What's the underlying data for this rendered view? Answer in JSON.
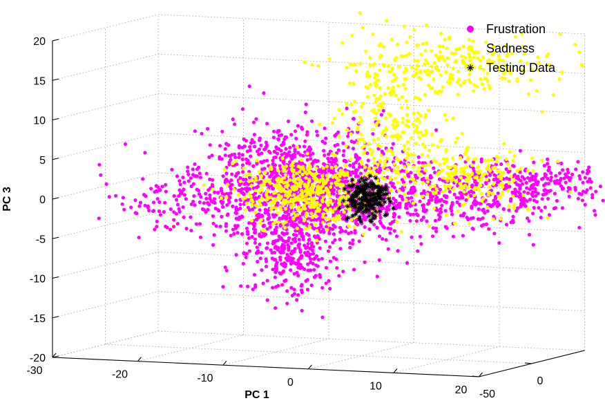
{
  "chart_data": {
    "type": "scatter",
    "projection": "3d",
    "title": "",
    "xlabel": "PC 1",
    "ylabel": "",
    "zlabel": "PC 3",
    "xlim": [
      -30,
      20
    ],
    "ylim": [
      -50,
      50
    ],
    "zlim": [
      -20,
      20
    ],
    "x_ticks": [
      "-30",
      "-20",
      "-10",
      "0",
      "10",
      "20"
    ],
    "y_ticks": [
      "-50",
      "0"
    ],
    "z_ticks": [
      "-20",
      "-15",
      "-10",
      "-5",
      "0",
      "5",
      "10",
      "15",
      "20"
    ],
    "grid": true,
    "legend_position": "top-right",
    "series": [
      {
        "name": "Frustration",
        "marker": "dot",
        "color": "#ff00ff",
        "clusters": [
          {
            "pc1": -6,
            "pc2": -5,
            "pc3": 1,
            "spread": [
              6,
              6,
              3.5
            ],
            "count": 1300
          },
          {
            "pc1": -8,
            "pc2": -5,
            "pc3": -7,
            "spread": [
              3,
              4,
              3
            ],
            "count": 300
          },
          {
            "pc1": 12,
            "pc2": -10,
            "pc3": 1,
            "spread": [
              6,
              6,
              2
            ],
            "count": 350
          },
          {
            "pc1": 20,
            "pc2": 0,
            "pc3": 3,
            "spread": [
              5,
              8,
              1.5
            ],
            "count": 220
          },
          {
            "pc1": -20,
            "pc2": -8,
            "pc3": -1,
            "spread": [
              4,
              4,
              2
            ],
            "count": 120
          }
        ]
      },
      {
        "name": "Sadness",
        "marker": "dot",
        "color": "#ffff00",
        "clusters": [
          {
            "pc1": -6,
            "pc2": -5,
            "pc3": 0.5,
            "spread": [
              4,
              4,
              2
            ],
            "count": 450
          },
          {
            "pc1": 3,
            "pc2": 5,
            "pc3": 8,
            "spread": [
              3,
              3,
              4
            ],
            "count": 250
          },
          {
            "pc1": 9,
            "pc2": 10,
            "pc3": 17,
            "spread": [
              6,
              5,
              2
            ],
            "count": 250
          },
          {
            "pc1": 13,
            "pc2": 0,
            "pc3": 3,
            "spread": [
              4,
              4,
              2
            ],
            "count": 200
          }
        ]
      },
      {
        "name": "Testing Data",
        "marker": "star",
        "color": "#000000",
        "clusters": [
          {
            "pc1": 1,
            "pc2": -3,
            "pc3": 0,
            "spread": [
              1.2,
              1.2,
              1.2
            ],
            "count": 180
          }
        ]
      }
    ]
  }
}
